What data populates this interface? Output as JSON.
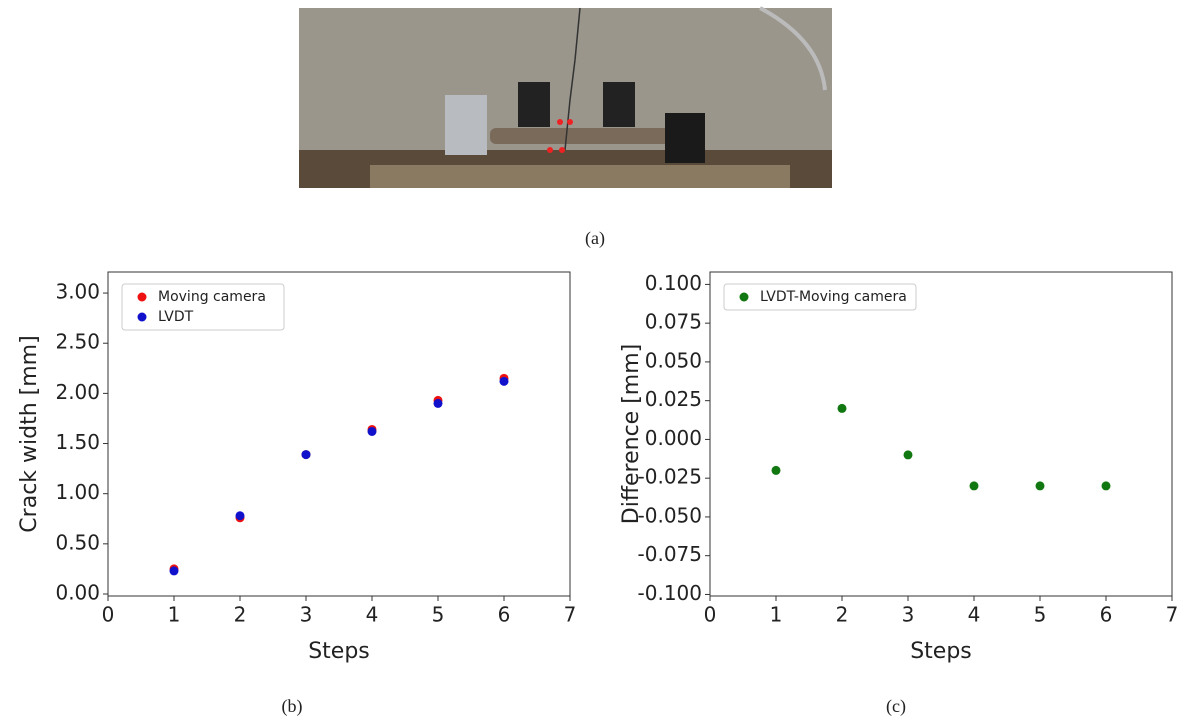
{
  "photo": {
    "caption": "(a)"
  },
  "chart_data": [
    {
      "type": "scatter",
      "caption": "(b)",
      "xlabel": "Steps",
      "ylabel": "Crack width [mm]",
      "xlim": [
        0,
        7
      ],
      "xticks": [
        0,
        1,
        2,
        3,
        4,
        5,
        6,
        7
      ],
      "ylim": [
        -0.02,
        3.21
      ],
      "yticks": [
        {
          "value": 0,
          "label": "0.00"
        },
        {
          "value": 0.5,
          "label": "0.50"
        },
        {
          "value": 1,
          "label": "1.00"
        },
        {
          "value": 1.5,
          "label": "1.50"
        },
        {
          "value": 2,
          "label": "2.00"
        },
        {
          "value": 2.5,
          "label": "2.50"
        },
        {
          "value": 3,
          "label": "3.00"
        }
      ],
      "legend": "upper left",
      "series": [
        {
          "name": "Moving camera",
          "color": "#ee1111",
          "x": [
            1,
            2,
            3,
            4,
            5,
            6
          ],
          "values": [
            0.25,
            0.76,
            1.39,
            1.64,
            1.93,
            2.15
          ]
        },
        {
          "name": "LVDT",
          "color": "#1111cc",
          "x": [
            1,
            2,
            3,
            4,
            5,
            6
          ],
          "values": [
            0.23,
            0.78,
            1.39,
            1.62,
            1.9,
            2.12
          ]
        }
      ]
    },
    {
      "type": "scatter",
      "caption": "(c)",
      "xlabel": "Steps",
      "ylabel": "Difference [mm]",
      "xlim": [
        0,
        7
      ],
      "xticks": [
        0,
        1,
        2,
        3,
        4,
        5,
        6,
        7
      ],
      "ylim": [
        -0.101,
        0.108
      ],
      "yticks": [
        {
          "value": -0.1,
          "label": "-0.100"
        },
        {
          "value": -0.075,
          "label": "-0.075"
        },
        {
          "value": -0.05,
          "label": "-0.050"
        },
        {
          "value": -0.025,
          "label": "-0.025"
        },
        {
          "value": 0,
          "label": "0.000"
        },
        {
          "value": 0.025,
          "label": "0.025"
        },
        {
          "value": 0.05,
          "label": "0.050"
        },
        {
          "value": 0.075,
          "label": "0.075"
        },
        {
          "value": 0.1,
          "label": "0.100"
        }
      ],
      "legend": "upper left",
      "series": [
        {
          "name": "LVDT-Moving camera",
          "color": "#117711",
          "x": [
            1,
            2,
            3,
            4,
            5,
            6
          ],
          "values": [
            -0.02,
            0.02,
            -0.01,
            -0.03,
            -0.03,
            -0.03
          ]
        }
      ]
    }
  ]
}
